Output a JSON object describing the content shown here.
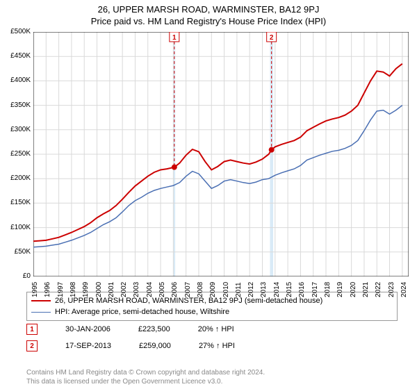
{
  "title_line1": "26, UPPER MARSH ROAD, WARMINSTER, BA12 9PJ",
  "title_line2": "Price paid vs. HM Land Registry's House Price Index (HPI)",
  "chart": {
    "type": "line",
    "background_color": "#ffffff",
    "plot_bg_color": "#ffffff",
    "grid_color": "#d9d9d9",
    "axis_color": "#000000",
    "axis_fontsize": 11,
    "tick_fontsize": 10,
    "x": {
      "min": 1995,
      "max": 2024.5,
      "ticks": [
        1995,
        1996,
        1997,
        1998,
        1999,
        2000,
        2001,
        2002,
        2003,
        2004,
        2005,
        2006,
        2007,
        2008,
        2009,
        2010,
        2011,
        2012,
        2013,
        2014,
        2015,
        2016,
        2017,
        2018,
        2019,
        2020,
        2021,
        2022,
        2023,
        2024
      ],
      "tick_labels": [
        "1995",
        "1996",
        "1997",
        "1998",
        "1999",
        "2000",
        "2001",
        "2002",
        "2003",
        "2004",
        "2005",
        "2006",
        "2007",
        "2008",
        "2009",
        "2010",
        "2011",
        "2012",
        "2013",
        "2014",
        "2015",
        "2016",
        "2017",
        "2018",
        "2019",
        "2020",
        "2021",
        "2022",
        "2023",
        "2024"
      ],
      "label_rotation": -90
    },
    "y": {
      "min": 0,
      "max": 500000,
      "ticks": [
        0,
        50000,
        100000,
        150000,
        200000,
        250000,
        300000,
        350000,
        400000,
        450000,
        500000
      ],
      "tick_labels": [
        "£0",
        "£50K",
        "£100K",
        "£150K",
        "£200K",
        "£250K",
        "£300K",
        "£350K",
        "£400K",
        "£450K",
        "£500K"
      ]
    },
    "series": [
      {
        "id": "price_paid",
        "label": "26, UPPER MARSH ROAD, WARMINSTER, BA12 9PJ (semi-detached house)",
        "color": "#cc0000",
        "line_width": 2,
        "x": [
          1995,
          1995.5,
          1996,
          1996.5,
          1997,
          1997.5,
          1998,
          1998.5,
          1999,
          1999.5,
          2000,
          2000.5,
          2001,
          2001.5,
          2002,
          2002.5,
          2003,
          2003.5,
          2004,
          2004.5,
          2005,
          2005.5,
          2006.08,
          2006.5,
          2007,
          2007.5,
          2008,
          2008.5,
          2009,
          2009.5,
          2010,
          2010.5,
          2011,
          2011.5,
          2012,
          2012.5,
          2013,
          2013.5,
          2013.72,
          2014,
          2014.5,
          2015,
          2015.5,
          2016,
          2016.5,
          2017,
          2017.5,
          2018,
          2018.5,
          2019,
          2019.5,
          2020,
          2020.5,
          2021,
          2021.5,
          2022,
          2022.5,
          2023,
          2023.5,
          2024
        ],
        "y": [
          72000,
          73000,
          74000,
          77000,
          80000,
          85000,
          90000,
          96000,
          102000,
          110000,
          120000,
          128000,
          135000,
          145000,
          158000,
          172000,
          185000,
          195000,
          205000,
          213000,
          218000,
          220000,
          223500,
          232000,
          248000,
          260000,
          255000,
          235000,
          218000,
          225000,
          235000,
          238000,
          235000,
          232000,
          230000,
          234000,
          240000,
          250000,
          259000,
          265000,
          270000,
          274000,
          278000,
          285000,
          298000,
          305000,
          312000,
          318000,
          322000,
          325000,
          330000,
          338000,
          350000,
          375000,
          400000,
          420000,
          418000,
          410000,
          425000,
          435000
        ]
      },
      {
        "id": "hpi",
        "label": "HPI: Average price, semi-detached house, Wiltshire",
        "color": "#4a6fb3",
        "line_width": 1.5,
        "x": [
          1995,
          1995.5,
          1996,
          1996.5,
          1997,
          1997.5,
          1998,
          1998.5,
          1999,
          1999.5,
          2000,
          2000.5,
          2001,
          2001.5,
          2002,
          2002.5,
          2003,
          2003.5,
          2004,
          2004.5,
          2005,
          2005.5,
          2006,
          2006.5,
          2007,
          2007.5,
          2008,
          2008.5,
          2009,
          2009.5,
          2010,
          2010.5,
          2011,
          2011.5,
          2012,
          2012.5,
          2013,
          2013.5,
          2014,
          2014.5,
          2015,
          2015.5,
          2016,
          2016.5,
          2017,
          2017.5,
          2018,
          2018.5,
          2019,
          2019.5,
          2020,
          2020.5,
          2021,
          2021.5,
          2022,
          2022.5,
          2023,
          2023.5,
          2024
        ],
        "y": [
          60000,
          61000,
          62000,
          64000,
          66000,
          70000,
          74000,
          79000,
          84000,
          90000,
          98000,
          106000,
          112000,
          120000,
          132000,
          145000,
          155000,
          162000,
          170000,
          176000,
          180000,
          183000,
          186000,
          192000,
          205000,
          215000,
          210000,
          195000,
          180000,
          186000,
          195000,
          198000,
          195000,
          192000,
          190000,
          193000,
          198000,
          200000,
          207000,
          212000,
          216000,
          220000,
          227000,
          238000,
          243000,
          248000,
          252000,
          256000,
          258000,
          262000,
          268000,
          278000,
          298000,
          320000,
          338000,
          340000,
          332000,
          340000,
          350000
        ]
      }
    ],
    "sale_markers": [
      {
        "n": 1,
        "x": 2006.08,
        "y": 223500,
        "color": "#cc0000",
        "band_color": "#d9eaf7",
        "band_start": 2006.0,
        "band_end": 2006.15
      },
      {
        "n": 2,
        "x": 2013.72,
        "y": 259000,
        "color": "#cc0000",
        "band_color": "#d9eaf7",
        "band_start": 2013.6,
        "band_end": 2013.85
      }
    ],
    "marker_style": {
      "shape": "circle",
      "radius": 4,
      "fill": "#cc0000"
    },
    "marker_label_box": {
      "border": "#cc0000",
      "bg": "#ffffff",
      "text": "#cc0000",
      "fontsize": 10,
      "dash": "4,3"
    }
  },
  "legend": {
    "rows": [
      {
        "color": "#cc0000",
        "width": 2,
        "text": "26, UPPER MARSH ROAD, WARMINSTER, BA12 9PJ (semi-detached house)"
      },
      {
        "color": "#4a6fb3",
        "width": 1.5,
        "text": "HPI: Average price, semi-detached house, Wiltshire"
      }
    ]
  },
  "sale_rows": [
    {
      "n": "1",
      "color": "#cc0000",
      "date": "30-JAN-2006",
      "price": "£223,500",
      "pct": "20% ↑ HPI"
    },
    {
      "n": "2",
      "color": "#cc0000",
      "date": "17-SEP-2013",
      "price": "£259,000",
      "pct": "27% ↑ HPI"
    }
  ],
  "copyright_line1": "Contains HM Land Registry data © Crown copyright and database right 2024.",
  "copyright_line2": "This data is licensed under the Open Government Licence v3.0."
}
